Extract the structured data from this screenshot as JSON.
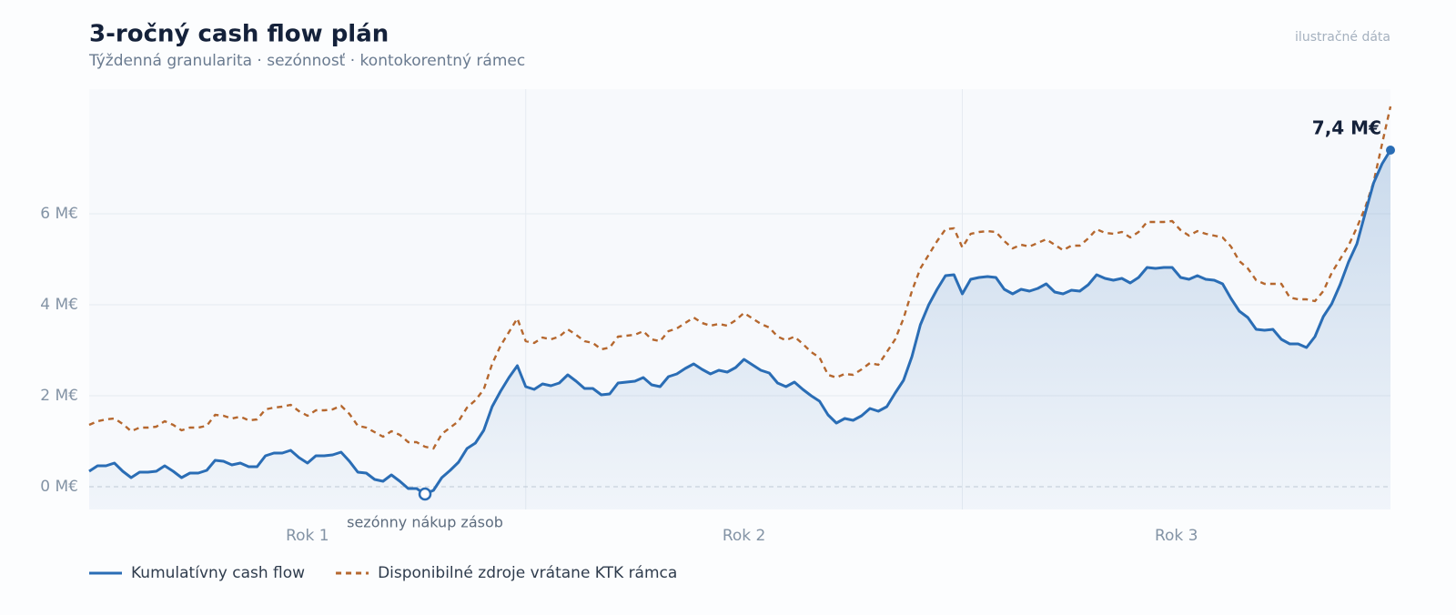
{
  "chart_data": {
    "type": "line",
    "title": "3-ročný cash flow plán",
    "subtitle": "Týždenná granularita · sezónnosť · kontokorentný rámec",
    "note": "ilustračné dáta",
    "x_labels": [
      "Rok 1",
      "Rok 2",
      "Rok 3"
    ],
    "ylim": [
      -0.5,
      8.74
    ],
    "yticks": [
      {
        "value": 0,
        "label": "0 M€"
      },
      {
        "value": 2,
        "label": "2 M€"
      },
      {
        "value": 4,
        "label": "4 M€"
      },
      {
        "value": 6,
        "label": "6 M€"
      }
    ],
    "grid": true,
    "min_annotation": "sezónny nákup zásob",
    "end_label": "7,4 M€",
    "series": [
      {
        "name": "Kumulatívny cash flow",
        "color": "#2a6db5",
        "dash": false,
        "values": [
          0.34,
          0.46,
          0.46,
          0.52,
          0.34,
          0.2,
          0.32,
          0.32,
          0.34,
          0.46,
          0.34,
          0.2,
          0.3,
          0.3,
          0.36,
          0.58,
          0.56,
          0.48,
          0.52,
          0.44,
          0.44,
          0.68,
          0.74,
          0.74,
          0.8,
          0.64,
          0.52,
          0.68,
          0.68,
          0.7,
          0.76,
          0.56,
          0.32,
          0.3,
          0.16,
          0.12,
          0.26,
          0.12,
          -0.04,
          -0.04,
          -0.16,
          -0.08,
          0.2,
          0.36,
          0.54,
          0.84,
          0.96,
          1.24,
          1.76,
          2.1,
          2.4,
          2.66,
          2.2,
          2.14,
          2.26,
          2.22,
          2.28,
          2.46,
          2.32,
          2.16,
          2.16,
          2.02,
          2.04,
          2.28,
          2.3,
          2.32,
          2.4,
          2.24,
          2.2,
          2.42,
          2.48,
          2.6,
          2.7,
          2.58,
          2.48,
          2.56,
          2.52,
          2.62,
          2.8,
          2.68,
          2.56,
          2.5,
          2.28,
          2.2,
          2.3,
          2.14,
          2.0,
          1.88,
          1.58,
          1.4,
          1.5,
          1.46,
          1.56,
          1.72,
          1.66,
          1.76,
          2.06,
          2.34,
          2.86,
          3.56,
          4.0,
          4.34,
          4.64,
          4.66,
          4.24,
          4.56,
          4.6,
          4.62,
          4.6,
          4.34,
          4.24,
          4.34,
          4.3,
          4.36,
          4.46,
          4.28,
          4.24,
          4.32,
          4.3,
          4.44,
          4.66,
          4.58,
          4.54,
          4.58,
          4.48,
          4.6,
          4.82,
          4.8,
          4.82,
          4.82,
          4.6,
          4.56,
          4.64,
          4.56,
          4.54,
          4.46,
          4.14,
          3.86,
          3.72,
          3.46,
          3.44,
          3.46,
          3.24,
          3.14,
          3.14,
          3.06,
          3.3,
          3.74,
          4.02,
          4.44,
          4.94,
          5.34,
          6.02,
          6.68,
          7.1,
          7.4
        ]
      },
      {
        "name": "Disponibilné zdroje vrátane KTK rámca",
        "color": "#b5672e",
        "dash": true,
        "values": [
          1.36,
          1.44,
          1.48,
          1.5,
          1.38,
          1.22,
          1.3,
          1.3,
          1.32,
          1.44,
          1.36,
          1.24,
          1.3,
          1.3,
          1.34,
          1.58,
          1.56,
          1.5,
          1.54,
          1.46,
          1.48,
          1.7,
          1.74,
          1.76,
          1.8,
          1.66,
          1.56,
          1.68,
          1.68,
          1.7,
          1.78,
          1.6,
          1.34,
          1.3,
          1.2,
          1.1,
          1.22,
          1.14,
          0.98,
          0.98,
          0.88,
          0.84,
          1.16,
          1.3,
          1.44,
          1.74,
          1.9,
          2.14,
          2.7,
          3.1,
          3.4,
          3.7,
          3.2,
          3.16,
          3.28,
          3.24,
          3.3,
          3.46,
          3.34,
          3.2,
          3.16,
          3.02,
          3.06,
          3.3,
          3.32,
          3.34,
          3.42,
          3.24,
          3.2,
          3.42,
          3.48,
          3.6,
          3.72,
          3.6,
          3.54,
          3.58,
          3.54,
          3.66,
          3.82,
          3.7,
          3.58,
          3.5,
          3.3,
          3.22,
          3.3,
          3.14,
          2.96,
          2.84,
          2.46,
          2.4,
          2.48,
          2.46,
          2.58,
          2.72,
          2.68,
          2.96,
          3.24,
          3.7,
          4.3,
          4.8,
          5.1,
          5.4,
          5.66,
          5.68,
          5.26,
          5.56,
          5.6,
          5.62,
          5.6,
          5.4,
          5.24,
          5.32,
          5.28,
          5.36,
          5.44,
          5.32,
          5.2,
          5.3,
          5.3,
          5.46,
          5.66,
          5.58,
          5.56,
          5.6,
          5.48,
          5.6,
          5.82,
          5.82,
          5.82,
          5.84,
          5.64,
          5.52,
          5.62,
          5.56,
          5.52,
          5.48,
          5.28,
          4.96,
          4.8,
          4.54,
          4.46,
          4.46,
          4.46,
          4.16,
          4.12,
          4.12,
          4.08,
          4.3,
          4.7,
          5.0,
          5.3,
          5.7,
          6.14,
          6.7,
          7.54,
          8.36
        ]
      }
    ]
  }
}
